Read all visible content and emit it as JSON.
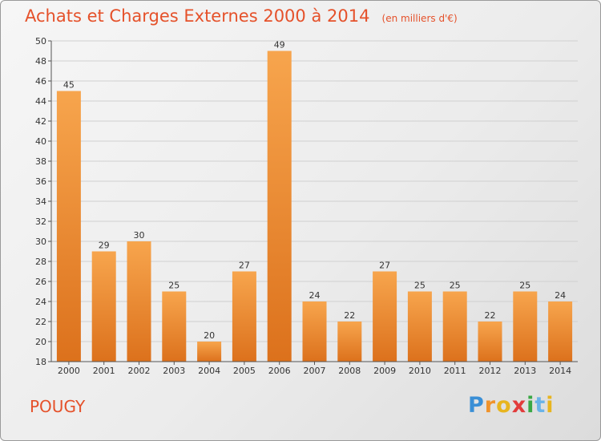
{
  "chart_data": {
    "type": "bar",
    "title": "Achats et Charges Externes 2000 à 2014",
    "unit_label": "(en milliers d'€)",
    "categories": [
      "2000",
      "2001",
      "2002",
      "2003",
      "2004",
      "2005",
      "2006",
      "2007",
      "2008",
      "2009",
      "2010",
      "2011",
      "2012",
      "2013",
      "2014"
    ],
    "values": [
      45,
      29,
      30,
      25,
      20,
      27,
      49,
      24,
      22,
      27,
      25,
      25,
      22,
      25,
      24
    ],
    "ylim": [
      18,
      50
    ],
    "yticks": [
      "18",
      "20",
      "22",
      "24",
      "26",
      "28",
      "30",
      "32",
      "34",
      "36",
      "38",
      "40",
      "42",
      "44",
      "46",
      "48",
      "50"
    ],
    "data_labels": [
      "45",
      "29",
      "30",
      "25",
      "20",
      "27",
      "49",
      "24",
      "22",
      "27",
      "25",
      "25",
      "22",
      "25",
      "24"
    ],
    "grid": true,
    "bar_color": "#f0902e",
    "title_color": "#e5512a"
  },
  "commune": "POUGY",
  "brand": {
    "letters": [
      "P",
      "r",
      "o",
      "x",
      "i",
      "t",
      "i"
    ],
    "colors": [
      "#3a8fd6",
      "#f0932b",
      "#e8b51f",
      "#e23b3b",
      "#3aa845",
      "#6ab3e8",
      "#e8b51f"
    ]
  }
}
